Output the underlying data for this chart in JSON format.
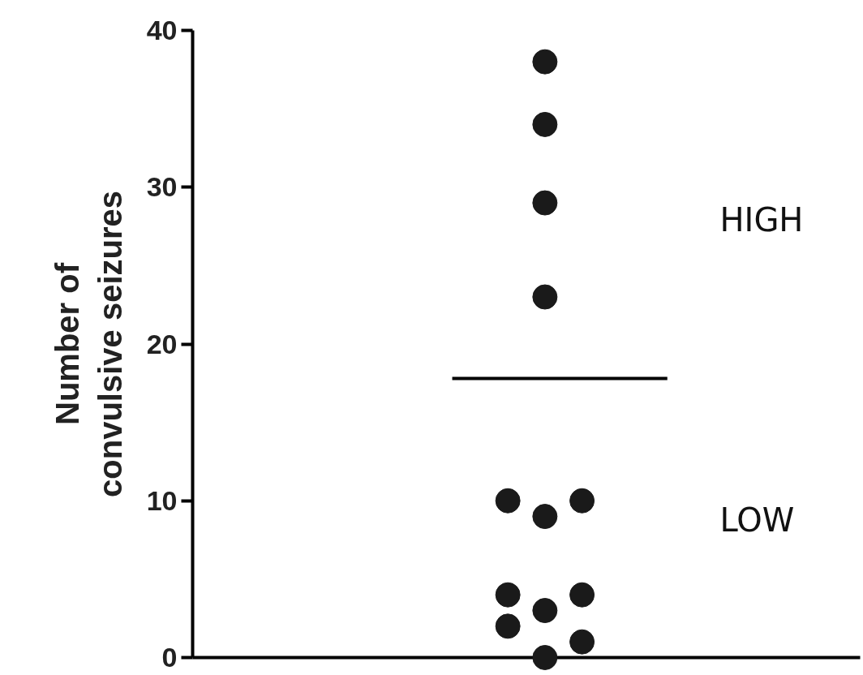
{
  "chart_data": {
    "type": "scatter",
    "ylabel": "Number of\nconvulsive seizures",
    "categories": [
      null,
      null,
      null,
      null,
      null,
      null,
      null,
      null,
      null,
      null,
      null,
      null,
      null,
      null,
      null,
      null,
      null,
      null
    ],
    "ylim": [
      0,
      40
    ],
    "yticks": [
      0,
      10,
      20,
      30,
      40
    ],
    "tick_labels": "y",
    "grid": false,
    "marker": "circle",
    "series": [
      {
        "color": "#1a1a1a",
        "values": [
          null,
          null,
          null,
          null,
          null,
          null,
          null,
          null,
          10,
          38,
          10,
          null,
          null,
          null,
          null,
          null,
          null,
          null
        ]
      },
      {
        "color": "#1a1a1a",
        "values": [
          null,
          null,
          null,
          null,
          null,
          null,
          null,
          null,
          4,
          34,
          4,
          null,
          null,
          null,
          null,
          null,
          null,
          null
        ]
      },
      {
        "color": "#1a1a1a",
        "values": [
          null,
          null,
          null,
          null,
          null,
          null,
          null,
          null,
          2,
          29,
          1,
          null,
          null,
          null,
          null,
          null,
          null,
          null
        ]
      },
      {
        "color": "#1a1a1a",
        "values": [
          null,
          null,
          null,
          null,
          null,
          null,
          null,
          null,
          null,
          23,
          null,
          null,
          null,
          null,
          null,
          null,
          null,
          null
        ]
      },
      {
        "color": "#1a1a1a",
        "values": [
          null,
          null,
          null,
          null,
          null,
          null,
          null,
          null,
          null,
          9,
          null,
          null,
          null,
          null,
          null,
          null,
          null,
          null
        ]
      },
      {
        "color": "#1a1a1a",
        "values": [
          null,
          null,
          null,
          null,
          null,
          null,
          null,
          null,
          null,
          3,
          null,
          null,
          null,
          null,
          null,
          null,
          null,
          null
        ]
      },
      {
        "color": "#1a1a1a",
        "values": [
          null,
          null,
          null,
          null,
          null,
          null,
          null,
          null,
          null,
          0,
          null,
          null,
          null,
          null,
          null,
          null,
          null,
          null
        ]
      }
    ],
    "ref_lines": [
      {
        "axis": "y",
        "value": 17.8,
        "color": "#000000"
      }
    ],
    "annotations": [
      "HIGH",
      "LOW"
    ]
  }
}
